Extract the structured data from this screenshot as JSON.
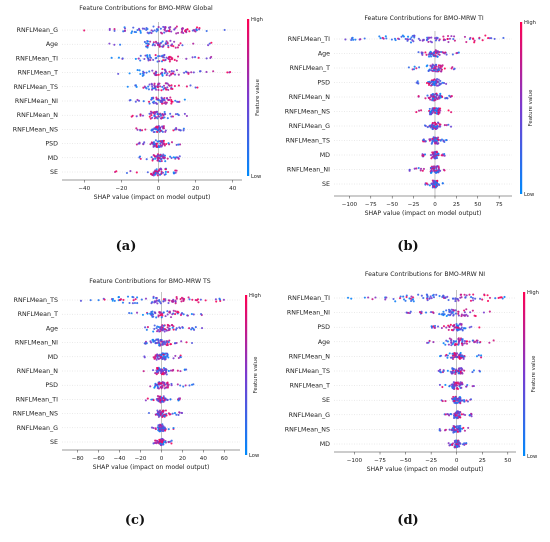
{
  "chart_data": [
    {
      "type": "scatter",
      "title": "Feature Contributions for BMO-MRW Global",
      "xlabel": "SHAP value (impact on model output)",
      "colorbar_label": "Feature value",
      "colorbar_high": "High",
      "colorbar_low": "Low",
      "panel_label": "(a)",
      "xlim": [
        -52,
        45
      ],
      "xticks": [
        -40,
        -20,
        0,
        20,
        40
      ],
      "features": [
        {
          "name": "RNFLMean_G",
          "min": -42,
          "max": 36,
          "lowMean": -14,
          "highMean": 18
        },
        {
          "name": "Age",
          "min": -27,
          "max": 33,
          "lowMean": -4,
          "highMean": 6
        },
        {
          "name": "RNFLMean_TI",
          "min": -26,
          "max": 35,
          "lowMean": -6,
          "highMean": 6
        },
        {
          "name": "RNFLMean_T",
          "min": -24,
          "max": 44,
          "lowMean": -5,
          "highMean": 8
        },
        {
          "name": "RNFLMean_TS",
          "min": -18,
          "max": 22,
          "lowMean": -3,
          "highMean": 4
        },
        {
          "name": "RNFLMean_NI",
          "min": -18,
          "max": 18,
          "lowMean": -2,
          "highMean": 3
        },
        {
          "name": "RNFLMean_N",
          "min": -16,
          "max": 16,
          "lowMean": 2,
          "highMean": -2
        },
        {
          "name": "RNFLMean_NS",
          "min": -12,
          "max": 14,
          "lowMean": -1,
          "highMean": 2
        },
        {
          "name": "PSD",
          "min": -12,
          "max": 12,
          "lowMean": -1,
          "highMean": 1
        },
        {
          "name": "MD",
          "min": -12,
          "max": 12,
          "lowMean": 1,
          "highMean": -1
        },
        {
          "name": "SE",
          "min": -24,
          "max": 10,
          "lowMean": 0,
          "highMean": 0
        }
      ]
    },
    {
      "type": "scatter",
      "title": "Feature Contributions for BMO-MRW TI",
      "xlabel": "SHAP value (impact on model output)",
      "colorbar_label": "Feature value",
      "colorbar_high": "High",
      "colorbar_low": "Low",
      "panel_label": "(b)",
      "xlim": [
        -118,
        90
      ],
      "xticks": [
        -100,
        -75,
        -50,
        -25,
        0,
        25,
        50,
        75
      ],
      "features": [
        {
          "name": "RNFLMean_TI",
          "min": -105,
          "max": 80,
          "lowMean": -55,
          "highMean": 45
        },
        {
          "name": "Age",
          "min": -25,
          "max": 28,
          "lowMean": -3,
          "highMean": 5
        },
        {
          "name": "RNFLMean_T",
          "min": -32,
          "max": 30,
          "lowMean": -4,
          "highMean": 4
        },
        {
          "name": "PSD",
          "min": -22,
          "max": 20,
          "lowMean": 3,
          "highMean": -3
        },
        {
          "name": "RNFLMean_N",
          "min": -20,
          "max": 20,
          "lowMean": 2,
          "highMean": -2
        },
        {
          "name": "RNFLMean_NS",
          "min": -22,
          "max": 25,
          "lowMean": -2,
          "highMean": 2
        },
        {
          "name": "RNFLMean_G",
          "min": -15,
          "max": 20,
          "lowMean": -2,
          "highMean": 2
        },
        {
          "name": "RNFLMean_TS",
          "min": -15,
          "max": 15,
          "lowMean": -1,
          "highMean": 1
        },
        {
          "name": "MD",
          "min": -15,
          "max": 14,
          "lowMean": 1,
          "highMean": -1
        },
        {
          "name": "RNFLMean_NI",
          "min": -30,
          "max": 12,
          "lowMean": 0,
          "highMean": 0
        },
        {
          "name": "SE",
          "min": -12,
          "max": 10,
          "lowMean": 0,
          "highMean": 0
        }
      ]
    },
    {
      "type": "scatter",
      "title": "Feature Contributions for BMO-MRW TS",
      "xlabel": "SHAP value (impact on model output)",
      "colorbar_label": "Feature value",
      "colorbar_high": "High",
      "colorbar_low": "Low",
      "panel_label": "(c)",
      "xlim": [
        -95,
        75
      ],
      "xticks": [
        -80,
        -60,
        -40,
        -20,
        0,
        20,
        40,
        60
      ],
      "features": [
        {
          "name": "RNFLMean_TS",
          "min": -85,
          "max": 68,
          "lowMean": -35,
          "highMean": 35
        },
        {
          "name": "RNFLMean_T",
          "min": -32,
          "max": 42,
          "lowMean": -5,
          "highMean": 8
        },
        {
          "name": "Age",
          "min": -22,
          "max": 40,
          "lowMean": -4,
          "highMean": 6
        },
        {
          "name": "RNFLMean_NI",
          "min": -20,
          "max": 30,
          "lowMean": -3,
          "highMean": 4
        },
        {
          "name": "MD",
          "min": -18,
          "max": 25,
          "lowMean": 2,
          "highMean": -2
        },
        {
          "name": "RNFLMean_N",
          "min": -18,
          "max": 25,
          "lowMean": 2,
          "highMean": -2
        },
        {
          "name": "PSD",
          "min": -15,
          "max": 32,
          "lowMean": -1,
          "highMean": 2
        },
        {
          "name": "RNFLMean_TI",
          "min": -15,
          "max": 18,
          "lowMean": -1,
          "highMean": 1
        },
        {
          "name": "RNFLMean_NS",
          "min": -12,
          "max": 20,
          "lowMean": -1,
          "highMean": 1
        },
        {
          "name": "RNFLMean_G",
          "min": -10,
          "max": 12,
          "lowMean": -1,
          "highMean": 1
        },
        {
          "name": "SE",
          "min": -8,
          "max": 10,
          "lowMean": 0,
          "highMean": 0
        }
      ]
    },
    {
      "type": "scatter",
      "title": "Feature Contributions for BMO-MRW NI",
      "xlabel": "SHAP value (impact on model output)",
      "colorbar_label": "Feature value",
      "colorbar_high": "High",
      "colorbar_low": "Low",
      "panel_label": "(d)",
      "xlim": [
        -120,
        58
      ],
      "xticks": [
        -100,
        -75,
        -50,
        -25,
        0,
        25,
        50
      ],
      "features": [
        {
          "name": "RNFLMean_TI",
          "min": -110,
          "max": 50,
          "lowMean": -45,
          "highMean": 35
        },
        {
          "name": "RNFLMean_NI",
          "min": -50,
          "max": 35,
          "lowMean": -15,
          "highMean": 12
        },
        {
          "name": "PSD",
          "min": -25,
          "max": 25,
          "lowMean": 3,
          "highMean": -3
        },
        {
          "name": "Age",
          "min": -30,
          "max": 45,
          "lowMean": -4,
          "highMean": 6
        },
        {
          "name": "RNFLMean_N",
          "min": -25,
          "max": 25,
          "lowMean": -2,
          "highMean": 3
        },
        {
          "name": "RNFLMean_TS",
          "min": -18,
          "max": 25,
          "lowMean": -2,
          "highMean": 2
        },
        {
          "name": "RNFLMean_T",
          "min": -20,
          "max": 20,
          "lowMean": -1,
          "highMean": 2
        },
        {
          "name": "SE",
          "min": -15,
          "max": 15,
          "lowMean": 0,
          "highMean": 0
        },
        {
          "name": "RNFLMean_G",
          "min": -12,
          "max": 20,
          "lowMean": -1,
          "highMean": 1
        },
        {
          "name": "RNFLMean_NS",
          "min": -20,
          "max": 12,
          "lowMean": 0,
          "highMean": 0
        },
        {
          "name": "MD",
          "min": -10,
          "max": 10,
          "lowMean": 0,
          "highMean": 0
        }
      ]
    }
  ],
  "colors": {
    "low": "#008afb",
    "mid": "#7a3bd0",
    "high": "#ff0052",
    "zero_line": "#999999"
  }
}
